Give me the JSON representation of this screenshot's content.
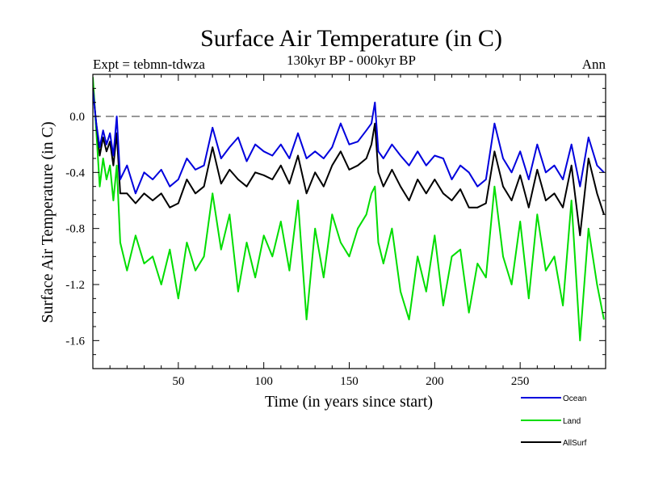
{
  "chart_data": {
    "type": "line",
    "title": "Surface Air Temperature (in C)",
    "subtitle": "130kyr BP - 000kyr BP",
    "expt_label": "Expt = tebmn-tdwza",
    "period_label": "Ann",
    "xlabel": "Time (in years since start)",
    "ylabel": "Surface Air Temperature (in C)",
    "xlim": [
      0,
      300
    ],
    "ylim": [
      -1.8,
      0.3
    ],
    "xticks": [
      50,
      100,
      150,
      200,
      250
    ],
    "xtick_labels": [
      "50",
      "100",
      "150",
      "200",
      "250"
    ],
    "yticks": [
      0.0,
      -0.4,
      -0.8,
      -1.2,
      -1.6
    ],
    "ytick_labels": [
      "0.0",
      "-0.4",
      "-0.8",
      "-1.2",
      "-1.6"
    ],
    "reference_line": {
      "y": 0.0,
      "style": "dashed"
    },
    "legend_position": "bottom-right",
    "series": [
      {
        "name": "Ocean",
        "color": "#0000dd",
        "x": [
          0,
          2,
          4,
          6,
          8,
          10,
          12,
          14,
          16,
          20,
          25,
          30,
          35,
          40,
          45,
          50,
          55,
          60,
          65,
          70,
          75,
          80,
          85,
          90,
          95,
          100,
          105,
          110,
          115,
          120,
          125,
          130,
          135,
          140,
          145,
          150,
          155,
          160,
          163,
          165,
          167,
          170,
          175,
          180,
          185,
          190,
          195,
          200,
          205,
          210,
          215,
          220,
          225,
          230,
          235,
          240,
          245,
          250,
          255,
          260,
          265,
          270,
          275,
          280,
          285,
          290,
          295,
          299
        ],
        "y": [
          0.18,
          -0.05,
          -0.22,
          -0.1,
          -0.2,
          -0.12,
          -0.28,
          0.0,
          -0.45,
          -0.35,
          -0.55,
          -0.4,
          -0.45,
          -0.38,
          -0.5,
          -0.45,
          -0.3,
          -0.38,
          -0.35,
          -0.08,
          -0.3,
          -0.22,
          -0.15,
          -0.32,
          -0.2,
          -0.25,
          -0.28,
          -0.2,
          -0.3,
          -0.12,
          -0.3,
          -0.25,
          -0.3,
          -0.22,
          -0.05,
          -0.2,
          -0.18,
          -0.1,
          -0.05,
          0.1,
          -0.25,
          -0.3,
          -0.2,
          -0.28,
          -0.35,
          -0.25,
          -0.35,
          -0.28,
          -0.3,
          -0.45,
          -0.35,
          -0.4,
          -0.5,
          -0.45,
          -0.05,
          -0.3,
          -0.4,
          -0.25,
          -0.45,
          -0.2,
          -0.4,
          -0.35,
          -0.45,
          -0.2,
          -0.5,
          -0.15,
          -0.35,
          -0.4
        ]
      },
      {
        "name": "Land",
        "color": "#00dd00",
        "x": [
          0,
          2,
          4,
          6,
          8,
          10,
          12,
          14,
          16,
          20,
          25,
          30,
          35,
          40,
          45,
          50,
          55,
          60,
          65,
          70,
          75,
          80,
          85,
          90,
          95,
          100,
          105,
          110,
          115,
          120,
          125,
          130,
          135,
          140,
          145,
          150,
          155,
          160,
          163,
          165,
          167,
          170,
          175,
          180,
          185,
          190,
          195,
          200,
          205,
          210,
          215,
          220,
          225,
          230,
          235,
          240,
          245,
          250,
          255,
          260,
          265,
          270,
          275,
          280,
          285,
          290,
          295,
          299
        ],
        "y": [
          0.28,
          -0.1,
          -0.5,
          -0.3,
          -0.45,
          -0.35,
          -0.6,
          -0.35,
          -0.9,
          -1.1,
          -0.85,
          -1.05,
          -1.0,
          -1.2,
          -0.95,
          -1.3,
          -0.9,
          -1.1,
          -1.0,
          -0.55,
          -0.95,
          -0.7,
          -1.25,
          -0.9,
          -1.15,
          -0.85,
          -1.0,
          -0.75,
          -1.1,
          -0.6,
          -1.45,
          -0.8,
          -1.15,
          -0.7,
          -0.9,
          -1.0,
          -0.8,
          -0.7,
          -0.55,
          -0.5,
          -0.9,
          -1.05,
          -0.8,
          -1.25,
          -1.45,
          -1.0,
          -1.25,
          -0.85,
          -1.35,
          -1.0,
          -0.95,
          -1.4,
          -1.05,
          -1.15,
          -0.5,
          -1.0,
          -1.2,
          -0.75,
          -1.3,
          -0.7,
          -1.1,
          -1.0,
          -1.35,
          -0.6,
          -1.6,
          -0.8,
          -1.2,
          -1.45
        ]
      },
      {
        "name": "AllSurf",
        "color": "#000000",
        "x": [
          0,
          2,
          4,
          6,
          8,
          10,
          12,
          14,
          16,
          20,
          25,
          30,
          35,
          40,
          45,
          50,
          55,
          60,
          65,
          70,
          75,
          80,
          85,
          90,
          95,
          100,
          105,
          110,
          115,
          120,
          125,
          130,
          135,
          140,
          145,
          150,
          155,
          160,
          163,
          165,
          167,
          170,
          175,
          180,
          185,
          190,
          195,
          200,
          205,
          210,
          215,
          220,
          225,
          230,
          235,
          240,
          245,
          250,
          255,
          260,
          265,
          270,
          275,
          280,
          285,
          290,
          295,
          299
        ],
        "y": [
          0.2,
          -0.05,
          -0.28,
          -0.15,
          -0.25,
          -0.18,
          -0.35,
          -0.12,
          -0.55,
          -0.55,
          -0.62,
          -0.55,
          -0.6,
          -0.55,
          -0.65,
          -0.62,
          -0.45,
          -0.55,
          -0.5,
          -0.22,
          -0.48,
          -0.38,
          -0.45,
          -0.5,
          -0.4,
          -0.42,
          -0.45,
          -0.35,
          -0.48,
          -0.28,
          -0.55,
          -0.4,
          -0.5,
          -0.35,
          -0.25,
          -0.38,
          -0.35,
          -0.3,
          -0.2,
          -0.05,
          -0.4,
          -0.5,
          -0.38,
          -0.5,
          -0.6,
          -0.45,
          -0.55,
          -0.45,
          -0.55,
          -0.6,
          -0.52,
          -0.65,
          -0.65,
          -0.62,
          -0.25,
          -0.5,
          -0.6,
          -0.42,
          -0.65,
          -0.38,
          -0.6,
          -0.55,
          -0.65,
          -0.35,
          -0.85,
          -0.3,
          -0.55,
          -0.7
        ]
      }
    ]
  }
}
